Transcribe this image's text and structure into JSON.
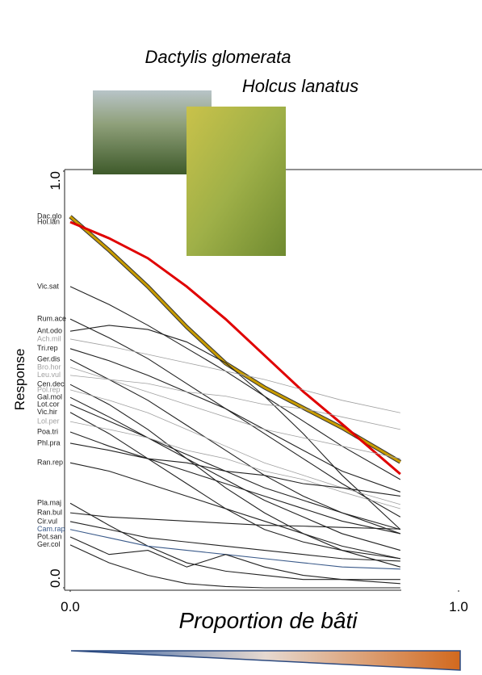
{
  "chart_data": {
    "type": "line",
    "xlabel": "Proportion de bâti",
    "ylabel": "Response",
    "annotations": [
      "Dactylis glomerata",
      "Holcus lanatus"
    ],
    "x": [
      0,
      0.1,
      0.2,
      0.3,
      0.4,
      0.5,
      0.6,
      0.7,
      0.85
    ],
    "xlim": [
      0,
      1
    ],
    "xticks": [
      {
        "value": 0,
        "label": "0.0"
      },
      {
        "value": 1,
        "label": "1.0"
      }
    ],
    "ylim": [
      0,
      1
    ],
    "yticks": [
      {
        "value": 0,
        "label": "0.0"
      },
      {
        "value": 1,
        "label": "1.0"
      }
    ],
    "series": [
      {
        "name": "Dac.glo",
        "color": "#c89b00",
        "values": [
          0.891,
          0.81,
          0.723,
          0.626,
          0.539,
          0.481,
          0.432,
          0.384,
          0.302
        ]
      },
      {
        "name": "Hol.lan",
        "color": "#e00000",
        "values": [
          0.878,
          0.839,
          0.791,
          0.723,
          0.645,
          0.558,
          0.471,
          0.393,
          0.273
        ]
      },
      {
        "name": "Vic.sat",
        "color": "#222222",
        "values": [
          0.723,
          0.68,
          0.63,
          0.575,
          0.52,
          0.46,
          0.4,
          0.34,
          0.26
        ]
      },
      {
        "name": "Rum.ace",
        "color": "#222222",
        "values": [
          0.645,
          0.6,
          0.55,
          0.49,
          0.43,
          0.37,
          0.31,
          0.25,
          0.17
        ]
      },
      {
        "name": "Ant.odo",
        "color": "#222222",
        "values": [
          0.616,
          0.63,
          0.62,
          0.59,
          0.54,
          0.46,
          0.37,
          0.27,
          0.14
        ]
      },
      {
        "name": "Ach.mil",
        "color": "#a0a0a0",
        "values": [
          0.597,
          0.58,
          0.56,
          0.54,
          0.52,
          0.5,
          0.475,
          0.45,
          0.42
        ]
      },
      {
        "name": "Tri.rep",
        "color": "#222222",
        "values": [
          0.574,
          0.545,
          0.51,
          0.47,
          0.43,
          0.38,
          0.33,
          0.28,
          0.23
        ]
      },
      {
        "name": "Ger.dis",
        "color": "#222222",
        "values": [
          0.548,
          0.5,
          0.45,
          0.39,
          0.33,
          0.27,
          0.22,
          0.18,
          0.13
        ]
      },
      {
        "name": "Bro.hor",
        "color": "#a0a0a0",
        "values": [
          0.529,
          0.5,
          0.47,
          0.44,
          0.41,
          0.38,
          0.36,
          0.34,
          0.31
        ]
      },
      {
        "name": "Leu.vul",
        "color": "#a0a0a0",
        "values": [
          0.51,
          0.5,
          0.49,
          0.47,
          0.46,
          0.44,
          0.43,
          0.41,
          0.38
        ]
      },
      {
        "name": "Cen.dec",
        "color": "#222222",
        "values": [
          0.488,
          0.44,
          0.38,
          0.31,
          0.24,
          0.18,
          0.13,
          0.09,
          0.05
        ]
      },
      {
        "name": "Pol.rep",
        "color": "#a0a0a0",
        "values": [
          0.475,
          0.45,
          0.42,
          0.38,
          0.34,
          0.3,
          0.27,
          0.24,
          0.2
        ]
      },
      {
        "name": "Gal.mol",
        "color": "#222222",
        "values": [
          0.457,
          0.41,
          0.36,
          0.31,
          0.26,
          0.21,
          0.17,
          0.13,
          0.09
        ]
      },
      {
        "name": "Lot.cor",
        "color": "#222222",
        "values": [
          0.44,
          0.4,
          0.36,
          0.32,
          0.28,
          0.24,
          0.21,
          0.18,
          0.14
        ]
      },
      {
        "name": "Vic.hir",
        "color": "#222222",
        "values": [
          0.421,
          0.37,
          0.31,
          0.25,
          0.19,
          0.14,
          0.11,
          0.09,
          0.07
        ]
      },
      {
        "name": "Lol.per",
        "color": "#a0a0a0",
        "values": [
          0.399,
          0.38,
          0.36,
          0.33,
          0.31,
          0.28,
          0.26,
          0.23,
          0.19
        ]
      },
      {
        "name": "Poa.tri",
        "color": "#222222",
        "values": [
          0.374,
          0.34,
          0.31,
          0.28,
          0.25,
          0.22,
          0.19,
          0.16,
          0.13
        ]
      },
      {
        "name": "Phl.pra",
        "color": "#222222",
        "values": [
          0.347,
          0.33,
          0.31,
          0.3,
          0.28,
          0.27,
          0.25,
          0.24,
          0.22
        ]
      },
      {
        "name": "Ran.rep",
        "color": "#222222",
        "values": [
          0.3,
          0.28,
          0.25,
          0.22,
          0.19,
          0.16,
          0.13,
          0.1,
          0.07
        ]
      },
      {
        "name": "Pla.maj",
        "color": "#222222",
        "values": [
          0.203,
          0.15,
          0.1,
          0.06,
          0.04,
          0.03,
          0.02,
          0.02,
          0.02
        ]
      },
      {
        "name": "Ran.bul",
        "color": "#222222",
        "values": [
          0.18,
          0.17,
          0.165,
          0.16,
          0.155,
          0.15,
          0.148,
          0.145,
          0.141
        ]
      },
      {
        "name": "Cir.vul",
        "color": "#222222",
        "values": [
          0.159,
          0.14,
          0.12,
          0.11,
          0.1,
          0.09,
          0.08,
          0.07,
          0.064
        ]
      },
      {
        "name": "Cam.rap",
        "color": "#3a5a8a",
        "values": [
          0.14,
          0.12,
          0.1,
          0.09,
          0.08,
          0.07,
          0.06,
          0.05,
          0.045
        ]
      },
      {
        "name": "Pot.san",
        "color": "#222222",
        "values": [
          0.122,
          0.08,
          0.09,
          0.05,
          0.08,
          0.05,
          0.03,
          0.02,
          0.01
        ]
      },
      {
        "name": "Ger.col",
        "color": "#222222",
        "values": [
          0.103,
          0.06,
          0.03,
          0.01,
          0.003,
          0,
          0,
          0,
          0
        ]
      }
    ]
  }
}
